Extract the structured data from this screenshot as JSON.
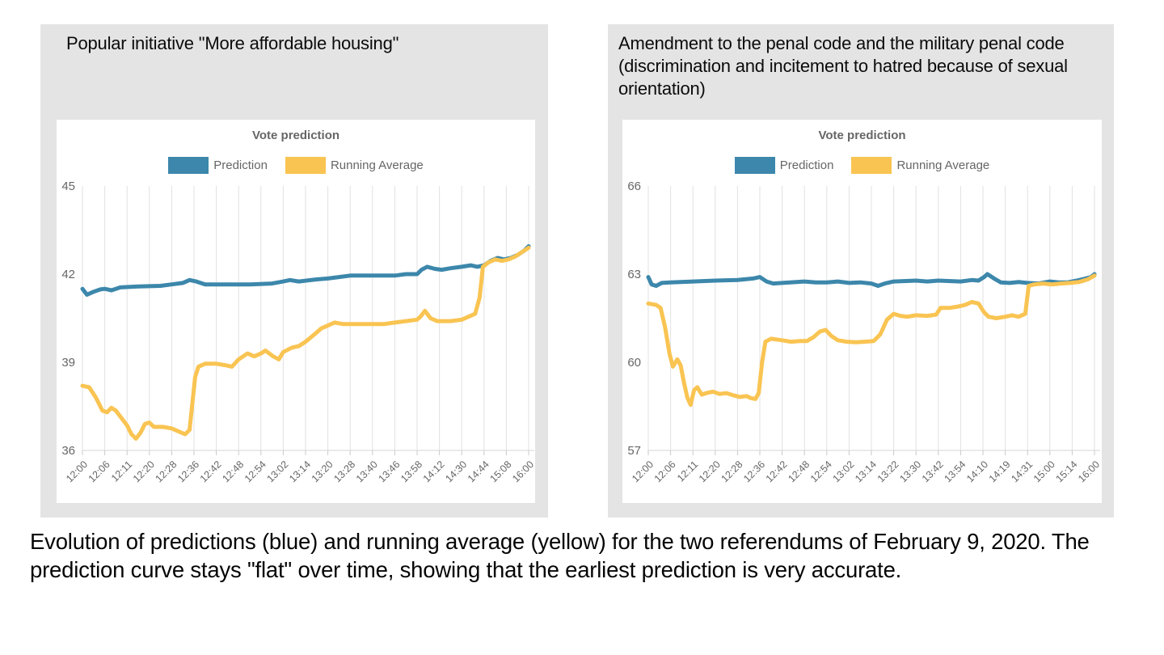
{
  "caption": "Evolution of predictions (blue) and running average (yellow) for the two referendums of February 9, 2020. The prediction curve stays \"flat\" over time, showing that the earliest prediction is very accurate.",
  "colors": {
    "prediction_blue": "#3c87ab",
    "running_average_yellow": "#f9c452"
  },
  "chart_data": [
    {
      "type": "line",
      "panel_title": "Popular initiative \"More affordable housing\"",
      "title": "Vote prediction",
      "legend_position": "top",
      "grid": "vertical-only",
      "ylim": [
        36,
        45
      ],
      "y_ticks": [
        45,
        42,
        39,
        36
      ],
      "x_labels": [
        "12:00",
        "12:06",
        "12:11",
        "12:20",
        "12:28",
        "12:36",
        "12:42",
        "12:48",
        "12:54",
        "13:02",
        "13:14",
        "13:20",
        "13:28",
        "13:40",
        "13:46",
        "13:58",
        "14:12",
        "14:30",
        "14:44",
        "15:08",
        "16:00"
      ],
      "legend": [
        {
          "label": "Prediction",
          "color": "#3c87ab"
        },
        {
          "label": "Running Average",
          "color": "#f9c452"
        }
      ],
      "series": [
        {
          "name": "Prediction",
          "color": "#3c87ab",
          "points": [
            [
              0,
              41.5
            ],
            [
              0.2,
              41.3
            ],
            [
              0.5,
              41.4
            ],
            [
              0.8,
              41.48
            ],
            [
              1,
              41.5
            ],
            [
              1.3,
              41.45
            ],
            [
              1.7,
              41.55
            ],
            [
              2.5,
              41.58
            ],
            [
              3.5,
              41.6
            ],
            [
              4,
              41.65
            ],
            [
              4.5,
              41.7
            ],
            [
              4.8,
              41.8
            ],
            [
              5.1,
              41.75
            ],
            [
              5.5,
              41.65
            ],
            [
              6.5,
              41.65
            ],
            [
              7.5,
              41.65
            ],
            [
              8.5,
              41.68
            ],
            [
              9,
              41.75
            ],
            [
              9.3,
              41.8
            ],
            [
              9.7,
              41.75
            ],
            [
              10.5,
              41.82
            ],
            [
              11,
              41.85
            ],
            [
              11.5,
              41.9
            ],
            [
              12,
              41.95
            ],
            [
              13,
              41.95
            ],
            [
              14,
              41.95
            ],
            [
              14.5,
              42.0
            ],
            [
              15,
              42.0
            ],
            [
              15.2,
              42.15
            ],
            [
              15.45,
              42.25
            ],
            [
              15.8,
              42.18
            ],
            [
              16.1,
              42.15
            ],
            [
              16.5,
              42.2
            ],
            [
              17,
              42.25
            ],
            [
              17.4,
              42.3
            ],
            [
              17.7,
              42.25
            ],
            [
              18,
              42.3
            ],
            [
              18.3,
              42.45
            ],
            [
              18.6,
              42.55
            ],
            [
              18.9,
              42.5
            ],
            [
              19.2,
              42.55
            ],
            [
              19.5,
              42.65
            ],
            [
              19.8,
              42.8
            ],
            [
              20,
              42.95
            ]
          ]
        },
        {
          "name": "Running Average",
          "color": "#f9c452",
          "points": [
            [
              0,
              38.2
            ],
            [
              0.3,
              38.15
            ],
            [
              0.6,
              37.8
            ],
            [
              0.9,
              37.35
            ],
            [
              1.1,
              37.3
            ],
            [
              1.3,
              37.45
            ],
            [
              1.5,
              37.35
            ],
            [
              1.8,
              37.05
            ],
            [
              2,
              36.85
            ],
            [
              2.2,
              36.55
            ],
            [
              2.4,
              36.4
            ],
            [
              2.6,
              36.6
            ],
            [
              2.8,
              36.9
            ],
            [
              3,
              36.95
            ],
            [
              3.2,
              36.8
            ],
            [
              3.6,
              36.8
            ],
            [
              4,
              36.75
            ],
            [
              4.3,
              36.65
            ],
            [
              4.6,
              36.55
            ],
            [
              4.8,
              36.7
            ],
            [
              5.05,
              38.5
            ],
            [
              5.2,
              38.85
            ],
            [
              5.5,
              38.95
            ],
            [
              6,
              38.95
            ],
            [
              6.4,
              38.9
            ],
            [
              6.7,
              38.85
            ],
            [
              7,
              39.1
            ],
            [
              7.4,
              39.3
            ],
            [
              7.7,
              39.2
            ],
            [
              8,
              39.3
            ],
            [
              8.2,
              39.4
            ],
            [
              8.55,
              39.2
            ],
            [
              8.8,
              39.1
            ],
            [
              9,
              39.35
            ],
            [
              9.4,
              39.5
            ],
            [
              9.7,
              39.55
            ],
            [
              10,
              39.7
            ],
            [
              10.4,
              39.95
            ],
            [
              10.7,
              40.15
            ],
            [
              11,
              40.25
            ],
            [
              11.3,
              40.35
            ],
            [
              11.7,
              40.3
            ],
            [
              12.5,
              40.3
            ],
            [
              13.5,
              40.3
            ],
            [
              14,
              40.35
            ],
            [
              14.5,
              40.4
            ],
            [
              15,
              40.45
            ],
            [
              15.15,
              40.55
            ],
            [
              15.35,
              40.75
            ],
            [
              15.6,
              40.5
            ],
            [
              15.9,
              40.4
            ],
            [
              16.5,
              40.4
            ],
            [
              17,
              40.45
            ],
            [
              17.3,
              40.55
            ],
            [
              17.6,
              40.65
            ],
            [
              17.8,
              41.2
            ],
            [
              17.95,
              42.25
            ],
            [
              18.2,
              42.4
            ],
            [
              18.5,
              42.5
            ],
            [
              18.8,
              42.45
            ],
            [
              19.1,
              42.5
            ],
            [
              19.4,
              42.6
            ],
            [
              19.7,
              42.75
            ],
            [
              20,
              42.9
            ]
          ]
        }
      ]
    },
    {
      "type": "line",
      "panel_title": " Amendment to the penal code and the military penal code (discrimination and incitement to hatred because of sexual orientation)",
      "title": "Vote prediction",
      "legend_position": "top",
      "grid": "vertical-only",
      "ylim": [
        57,
        66
      ],
      "y_ticks": [
        66,
        63,
        60,
        57
      ],
      "x_labels": [
        "12:00",
        "12:06",
        "12:11",
        "12:20",
        "12:28",
        "12:36",
        "12:42",
        "12:48",
        "12:54",
        "13:02",
        "13:14",
        "13:22",
        "13:30",
        "13:42",
        "13:54",
        "14:10",
        "14:19",
        "14:31",
        "15:00",
        "15:14",
        "16:00"
      ],
      "legend": [
        {
          "label": "Prediction",
          "color": "#3c87ab"
        },
        {
          "label": "Running Average",
          "color": "#f9c452"
        }
      ],
      "series": [
        {
          "name": "Prediction",
          "color": "#3c87ab",
          "points": [
            [
              0,
              62.9
            ],
            [
              0.15,
              62.65
            ],
            [
              0.35,
              62.6
            ],
            [
              0.6,
              62.7
            ],
            [
              1,
              62.72
            ],
            [
              2,
              62.75
            ],
            [
              3,
              62.78
            ],
            [
              4,
              62.8
            ],
            [
              4.7,
              62.85
            ],
            [
              5,
              62.9
            ],
            [
              5.3,
              62.75
            ],
            [
              5.6,
              62.68
            ],
            [
              6,
              62.7
            ],
            [
              7,
              62.75
            ],
            [
              7.5,
              62.72
            ],
            [
              8,
              62.72
            ],
            [
              8.5,
              62.75
            ],
            [
              9,
              62.7
            ],
            [
              9.5,
              62.72
            ],
            [
              10,
              62.68
            ],
            [
              10.3,
              62.6
            ],
            [
              10.6,
              62.68
            ],
            [
              11,
              62.75
            ],
            [
              12,
              62.78
            ],
            [
              12.5,
              62.75
            ],
            [
              13,
              62.78
            ],
            [
              14,
              62.75
            ],
            [
              14.5,
              62.8
            ],
            [
              14.8,
              62.78
            ],
            [
              15.05,
              62.9
            ],
            [
              15.2,
              63.0
            ],
            [
              15.5,
              62.85
            ],
            [
              15.8,
              62.72
            ],
            [
              16.2,
              62.7
            ],
            [
              16.6,
              62.73
            ],
            [
              17,
              62.7
            ],
            [
              17.5,
              62.68
            ],
            [
              18,
              62.75
            ],
            [
              18.4,
              62.72
            ],
            [
              18.8,
              62.72
            ],
            [
              19.2,
              62.78
            ],
            [
              19.6,
              62.85
            ],
            [
              19.85,
              62.9
            ],
            [
              20,
              63.0
            ]
          ]
        },
        {
          "name": "Running Average",
          "color": "#f9c452",
          "points": [
            [
              0,
              62.0
            ],
            [
              0.35,
              61.95
            ],
            [
              0.55,
              61.85
            ],
            [
              0.75,
              61.2
            ],
            [
              0.95,
              60.3
            ],
            [
              1.1,
              59.85
            ],
            [
              1.3,
              60.1
            ],
            [
              1.45,
              59.9
            ],
            [
              1.6,
              59.3
            ],
            [
              1.75,
              58.8
            ],
            [
              1.9,
              58.55
            ],
            [
              2.05,
              59.05
            ],
            [
              2.2,
              59.15
            ],
            [
              2.4,
              58.9
            ],
            [
              2.6,
              58.95
            ],
            [
              2.9,
              59.0
            ],
            [
              3.2,
              58.92
            ],
            [
              3.5,
              58.95
            ],
            [
              3.8,
              58.88
            ],
            [
              4.1,
              58.82
            ],
            [
              4.4,
              58.85
            ],
            [
              4.6,
              58.78
            ],
            [
              4.8,
              58.75
            ],
            [
              4.95,
              58.95
            ],
            [
              5.1,
              60.0
            ],
            [
              5.25,
              60.7
            ],
            [
              5.5,
              60.8
            ],
            [
              6,
              60.75
            ],
            [
              6.4,
              60.7
            ],
            [
              6.8,
              60.72
            ],
            [
              7.1,
              60.72
            ],
            [
              7.4,
              60.85
            ],
            [
              7.7,
              61.05
            ],
            [
              7.95,
              61.1
            ],
            [
              8.2,
              60.9
            ],
            [
              8.5,
              60.75
            ],
            [
              8.9,
              60.7
            ],
            [
              9.3,
              60.68
            ],
            [
              9.7,
              60.7
            ],
            [
              10.1,
              60.72
            ],
            [
              10.4,
              60.95
            ],
            [
              10.7,
              61.45
            ],
            [
              11,
              61.65
            ],
            [
              11.3,
              61.58
            ],
            [
              11.6,
              61.55
            ],
            [
              12,
              61.6
            ],
            [
              12.5,
              61.58
            ],
            [
              12.9,
              61.62
            ],
            [
              13.1,
              61.85
            ],
            [
              13.5,
              61.85
            ],
            [
              13.9,
              61.9
            ],
            [
              14.2,
              61.95
            ],
            [
              14.5,
              62.05
            ],
            [
              14.8,
              62.0
            ],
            [
              15.05,
              61.7
            ],
            [
              15.25,
              61.55
            ],
            [
              15.6,
              61.5
            ],
            [
              16,
              61.55
            ],
            [
              16.3,
              61.6
            ],
            [
              16.6,
              61.55
            ],
            [
              16.9,
              61.65
            ],
            [
              17.05,
              62.6
            ],
            [
              17.3,
              62.65
            ],
            [
              17.7,
              62.68
            ],
            [
              18.1,
              62.65
            ],
            [
              18.5,
              62.68
            ],
            [
              18.9,
              62.7
            ],
            [
              19.3,
              62.73
            ],
            [
              19.7,
              62.82
            ],
            [
              20,
              62.95
            ]
          ]
        }
      ]
    }
  ]
}
